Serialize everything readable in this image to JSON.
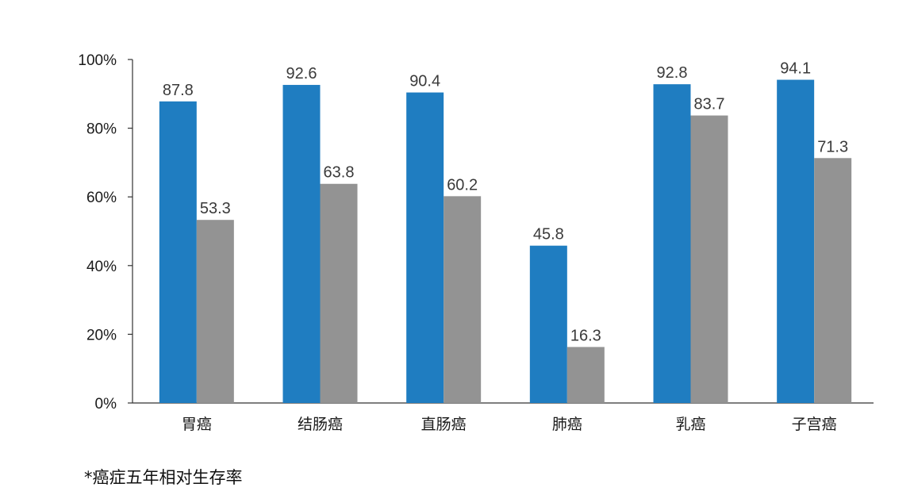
{
  "chart_data": {
    "type": "bar",
    "categories": [
      "胃癌",
      "结肠癌",
      "直肠癌",
      "肺癌",
      "乳癌",
      "子宫癌"
    ],
    "series": [
      {
        "values": [
          87.8,
          92.6,
          90.4,
          45.8,
          92.8,
          94.1
        ],
        "labels": [
          "87.8",
          "92.6",
          "90.4",
          "45.8",
          "92.8",
          "94.1"
        ],
        "color": "#1f7dc1"
      },
      {
        "values": [
          53.3,
          63.8,
          60.2,
          16.3,
          83.7,
          71.3
        ],
        "labels": [
          "53.3",
          "63.8",
          "60.2",
          "16.3",
          "83.7",
          "71.3"
        ],
        "color": "#939393"
      }
    ],
    "y_ticks": [
      "0%",
      "20%",
      "40%",
      "60%",
      "80%",
      "100%"
    ],
    "ylim": [
      0,
      100
    ],
    "grid": false,
    "legend": "none"
  },
  "footnote": "*癌症五年相对生存率"
}
